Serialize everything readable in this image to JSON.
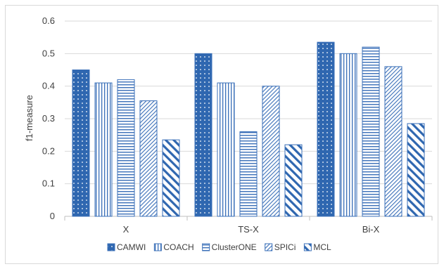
{
  "chart_data": {
    "type": "bar",
    "title": "",
    "xlabel": "",
    "ylabel": "f1-measure",
    "ylim": [
      0,
      0.6
    ],
    "yticks": [
      "0",
      "0.1",
      "0.2",
      "0.3",
      "0.4",
      "0.5",
      "0.6"
    ],
    "categories": [
      "X",
      "TS-X",
      "Bi-X"
    ],
    "series": [
      {
        "name": "CAMWI",
        "values": [
          0.45,
          0.5,
          0.535
        ],
        "color": "#4a7ebb",
        "pattern": "dots"
      },
      {
        "name": "COACH",
        "values": [
          0.41,
          0.41,
          0.5
        ],
        "color": "#4a7ebb",
        "pattern": "vertical"
      },
      {
        "name": "ClusterONE",
        "values": [
          0.42,
          0.26,
          0.52
        ],
        "color": "#4a7ebb",
        "pattern": "horizontal"
      },
      {
        "name": "SPICi",
        "values": [
          0.355,
          0.4,
          0.46
        ],
        "color": "#4a7ebb",
        "pattern": "diagonal-thin"
      },
      {
        "name": "MCL",
        "values": [
          0.235,
          0.22,
          0.285
        ],
        "color": "#4a7ebb",
        "pattern": "diagonal-wide"
      }
    ],
    "grid": "horizontal",
    "legend_position": "bottom"
  }
}
